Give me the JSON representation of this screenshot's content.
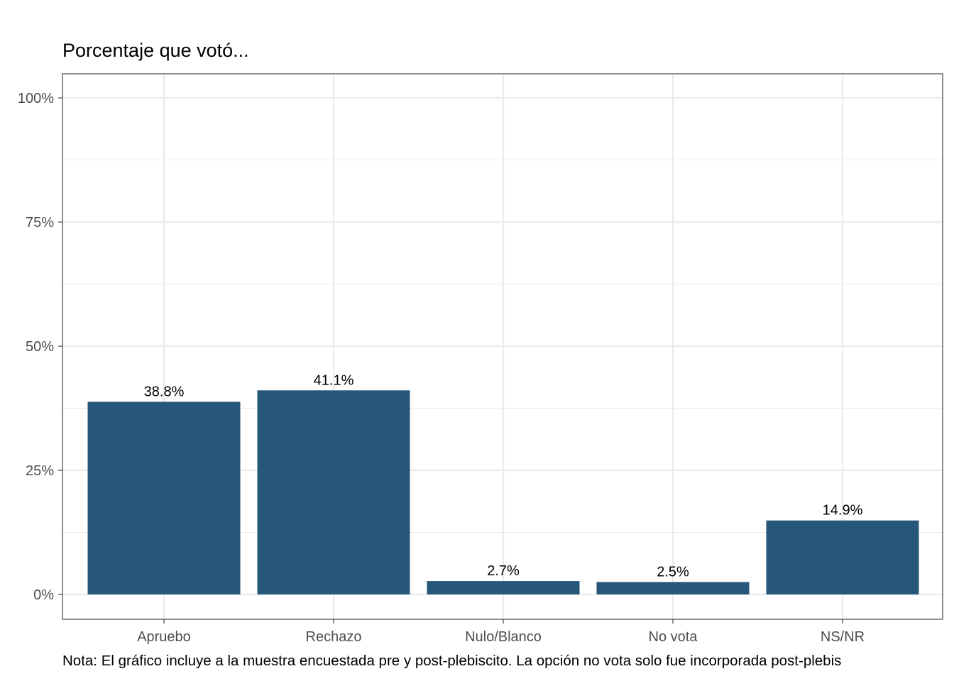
{
  "chart_data": {
    "type": "bar",
    "title": "Porcentaje que votó...",
    "caption": "Nota: El gráfico incluye a la muestra encuestada pre y post-plebiscito. La opción no vota solo fue incorporada post-plebis",
    "xlabel": "",
    "ylabel": "",
    "categories": [
      "Apruebo",
      "Rechazo",
      "Nulo/Blanco",
      "No vota",
      "NS/NR"
    ],
    "values": [
      38.8,
      41.1,
      2.7,
      2.5,
      14.9
    ],
    "value_labels": [
      "38.8%",
      "41.1%",
      "2.7%",
      "2.5%",
      "14.9%"
    ],
    "ylim": [
      0,
      100
    ],
    "yticks": [
      0,
      25,
      50,
      75,
      100
    ],
    "ytick_labels": [
      "0%",
      "25%",
      "50%",
      "75%",
      "100%"
    ],
    "grid": true,
    "legend": "none",
    "colors": {
      "bar": "#27567b",
      "grid": "#ebebeb",
      "panel_border": "#333333",
      "tick_text": "#4d4d4d"
    }
  }
}
